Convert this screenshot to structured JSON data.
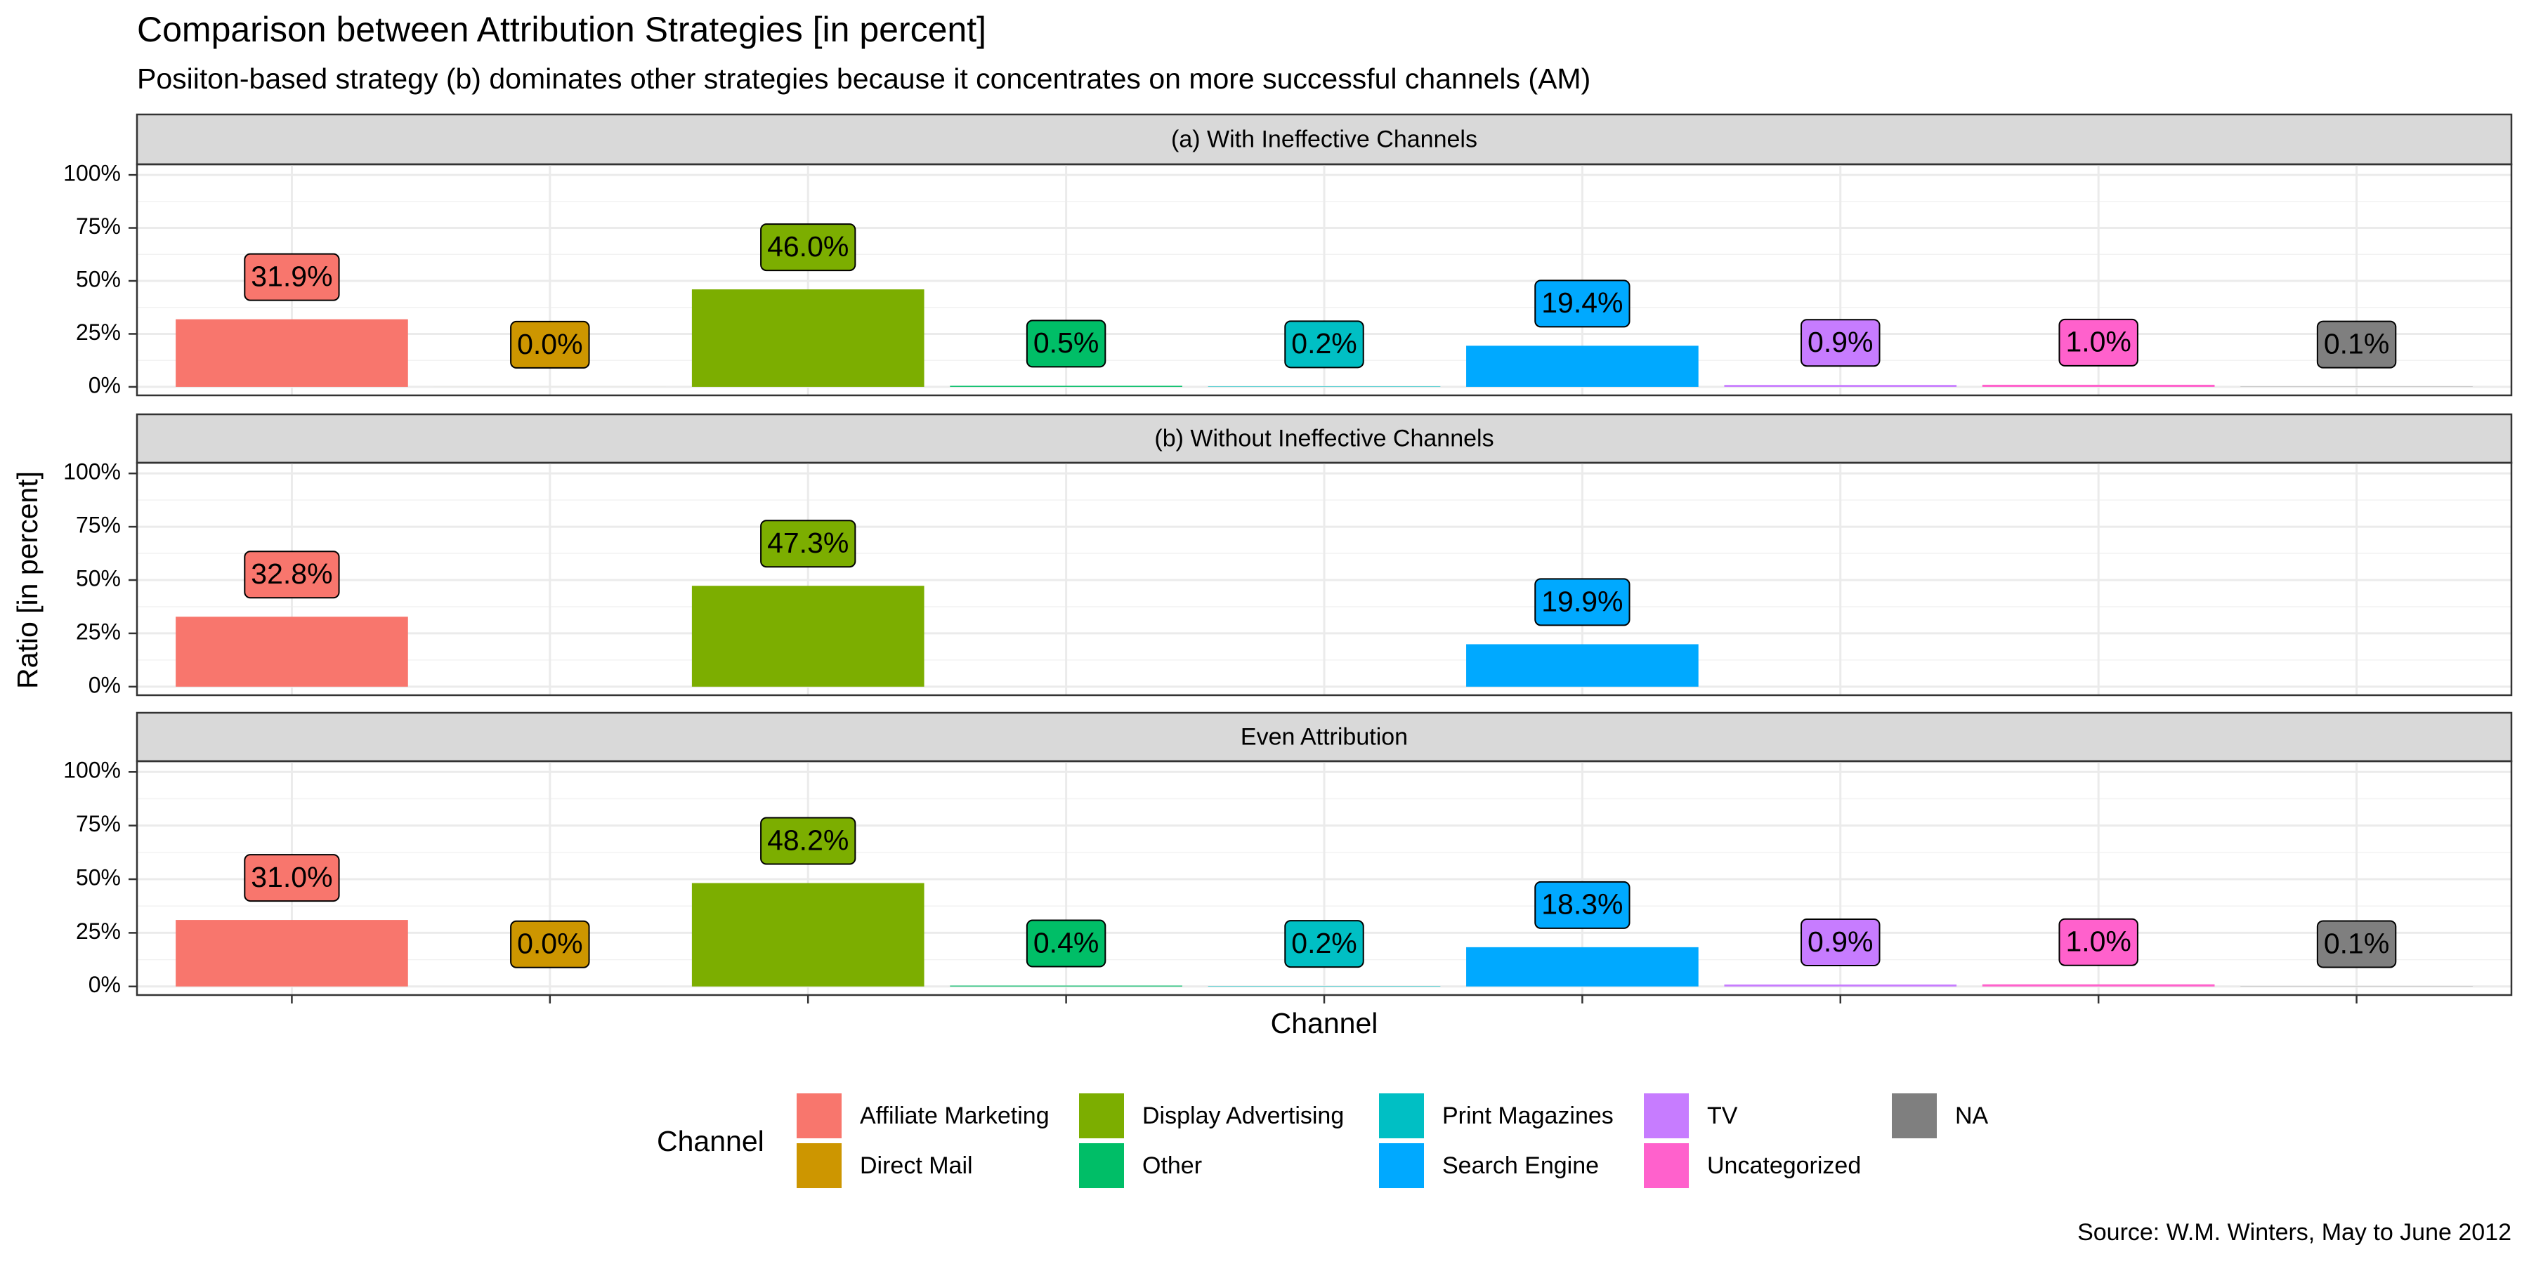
{
  "chart_data": {
    "type": "bar",
    "title": "Comparison between Attribution Strategies [in percent]",
    "subtitle": "Posiiton-based strategy (b) dominates other strategies because it concentrates on more successful channels (AM)",
    "x_label": "Channel",
    "y_label": "Ratio [in percent]",
    "legend_title": "Channel",
    "caption": "Source: W.M. Winters, May to June 2012",
    "categories": [
      "Affiliate Marketing",
      "Direct Mail",
      "Display Advertising",
      "Other",
      "Print Magazines",
      "Search Engine",
      "TV",
      "Uncategorized",
      "NA"
    ],
    "colors": [
      "#F8766D",
      "#CD9600",
      "#7CAE00",
      "#00BE67",
      "#00BFC4",
      "#00A9FF",
      "#C77CFF",
      "#FF61CC",
      "#7F7F7F"
    ],
    "ylim": [
      -4,
      105
    ],
    "yticks": [
      {
        "value": 0,
        "label": "0%"
      },
      {
        "value": 25,
        "label": "25%"
      },
      {
        "value": 50,
        "label": "50%"
      },
      {
        "value": 75,
        "label": "75%"
      },
      {
        "value": 100,
        "label": "100%"
      }
    ],
    "y_minor_ticks": [
      12.5,
      37.5,
      62.5,
      87.5
    ],
    "grid": true,
    "facets": [
      {
        "title": "(a) With Ineffective Channels",
        "values": [
          31.9,
          0.0,
          46.0,
          0.5,
          0.2,
          19.4,
          0.9,
          1.0,
          0.1
        ],
        "value_labels": [
          "31.9%",
          "0.0%",
          "46.0%",
          "0.5%",
          "0.2%",
          "19.4%",
          "0.9%",
          "1.0%",
          "0.1%"
        ]
      },
      {
        "title": "(b) Without Ineffective Channels",
        "values": [
          32.8,
          null,
          47.3,
          null,
          null,
          19.9,
          null,
          null,
          null
        ],
        "value_labels": [
          "32.8%",
          null,
          "47.3%",
          null,
          null,
          "19.9%",
          null,
          null,
          null
        ]
      },
      {
        "title": "Even Attribution",
        "values": [
          31.0,
          0.0,
          48.2,
          0.4,
          0.2,
          18.3,
          0.9,
          1.0,
          0.1
        ],
        "value_labels": [
          "31.0%",
          "0.0%",
          "48.2%",
          "0.4%",
          "0.2%",
          "18.3%",
          "0.9%",
          "1.0%",
          "0.1%"
        ]
      }
    ]
  }
}
